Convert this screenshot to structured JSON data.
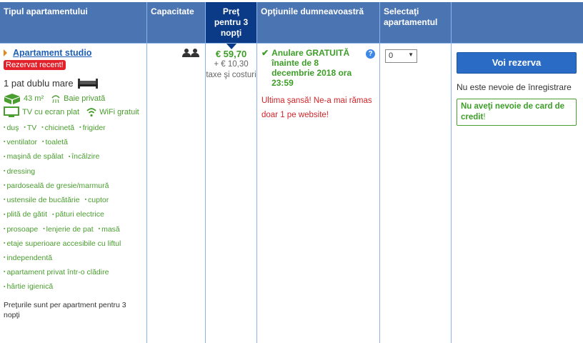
{
  "headers": {
    "type": "Tipul apartamentului",
    "capacity": "Capacitate",
    "price": "Preţ pentru 3 nopţi",
    "options": "Opţiunile dumneavoastră",
    "select": "Selectaţi apartamentul"
  },
  "room": {
    "name": "Apartament studio",
    "badge": "Rezervat recent!",
    "bed": "1 pat dublu mare",
    "size": "43 m²",
    "bathroom": "Baie privată",
    "tv": "TV cu ecran plat",
    "wifi": "WiFi gratuit",
    "amenity_rows": [
      [
        "duş",
        "TV",
        "chicinetă",
        "frigider"
      ],
      [
        "ventilator",
        "toaletă"
      ],
      [
        "maşină de spălat",
        "încălzire"
      ],
      [
        "dressing"
      ],
      [
        "pardoseală de gresie/marmură"
      ],
      [
        "ustensile de bucătărie",
        "cuptor"
      ],
      [
        "plită de gătit",
        "pături electrice"
      ],
      [
        "prosoape",
        "lenjerie de pat",
        "masă"
      ],
      [
        "etaje superioare accesibile cu liftul"
      ],
      [
        "independentă"
      ],
      [
        "apartament privat într-o clădire"
      ],
      [
        "hârtie igienică"
      ]
    ],
    "price_note": "Preţurile sunt per apartment pentru 3 nopţi"
  },
  "price": {
    "main": "€ 59,70",
    "taxes": "+ € 10,30 taxe şi costuri"
  },
  "options": {
    "cancellation": "Anulare GRATUITĂ înainte de 8 decembrie 2018 ora 23:59",
    "help": "?",
    "urgency": "Ultima şansă! Ne-a mai rămas doar 1 pe website!"
  },
  "select": {
    "value": "0"
  },
  "booking": {
    "button": "Voi rezerva",
    "no_registration": "Nu este nevoie de înregistrare",
    "no_card": "Nu aveţi nevoie de card de credit",
    "no_card_suffix": "!"
  },
  "colors": {
    "header": "#4b74b2",
    "price_header": "#0b3a87",
    "green": "#3c9e27",
    "red": "#d0262b",
    "button": "#2a6bc6"
  }
}
